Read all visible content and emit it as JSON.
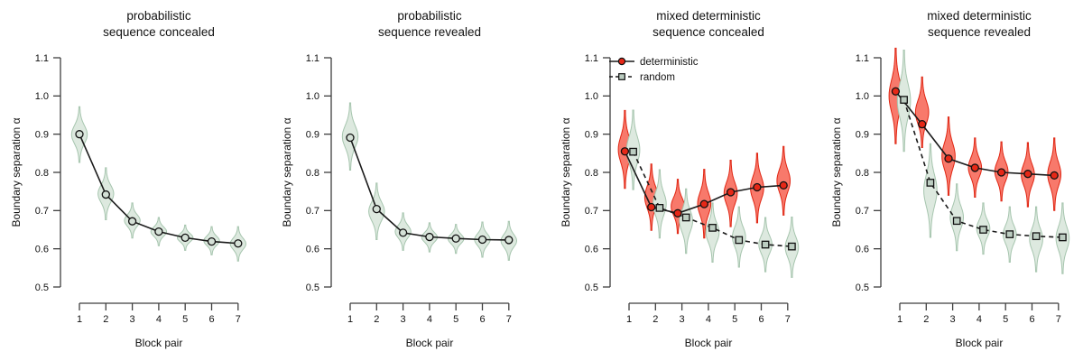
{
  "page": {
    "background": "#ffffff"
  },
  "colors": {
    "axis": "#3f3f3f",
    "text": "#111111",
    "data_line": "#1a1a1a",
    "marker_stroke": "#111111"
  },
  "chart_data": [
    {
      "type": "violin+line",
      "title1": "probabilistic",
      "title2": "sequence concealed",
      "xlabel": "Block pair",
      "ylabel": "Boundary separation α",
      "x": [
        1,
        2,
        3,
        4,
        5,
        6,
        7
      ],
      "ylim": [
        0.5,
        1.1
      ],
      "yticks": [
        0.5,
        0.6,
        0.7,
        0.8,
        0.9,
        1.0,
        1.1
      ],
      "grid": "off",
      "legend": null,
      "series": [
        {
          "name": "probabilistic",
          "line": "solid",
          "marker": "circle",
          "violin_fill": "#dde9df",
          "violin_stroke": "#a6c5ae",
          "marker_fill": "#d4e0d6",
          "means": [
            0.9,
            0.742,
            0.672,
            0.645,
            0.629,
            0.619,
            0.614
          ],
          "violins": [
            [
              0.826,
              0.972
            ],
            [
              0.676,
              0.812
            ],
            [
              0.628,
              0.72
            ],
            [
              0.608,
              0.682
            ],
            [
              0.596,
              0.662
            ],
            [
              0.584,
              0.658
            ],
            [
              0.568,
              0.658
            ]
          ]
        }
      ]
    },
    {
      "type": "violin+line",
      "title1": "probabilistic",
      "title2": "sequence revealed",
      "xlabel": "Block pair",
      "ylabel": "Boundary separation α",
      "x": [
        1,
        2,
        3,
        4,
        5,
        6,
        7
      ],
      "ylim": [
        0.5,
        1.1
      ],
      "yticks": [
        0.5,
        0.6,
        0.7,
        0.8,
        0.9,
        1.0,
        1.1
      ],
      "grid": "off",
      "legend": null,
      "series": [
        {
          "name": "probabilistic",
          "line": "solid",
          "marker": "circle",
          "violin_fill": "#dde9df",
          "violin_stroke": "#a6c5ae",
          "marker_fill": "#d4e0d6",
          "means": [
            0.891,
            0.704,
            0.642,
            0.631,
            0.627,
            0.624,
            0.623
          ],
          "violins": [
            [
              0.806,
              0.982
            ],
            [
              0.624,
              0.772
            ],
            [
              0.596,
              0.694
            ],
            [
              0.592,
              0.668
            ],
            [
              0.588,
              0.664
            ],
            [
              0.578,
              0.67
            ],
            [
              0.57,
              0.672
            ]
          ]
        }
      ]
    },
    {
      "type": "violin+line",
      "title1": "mixed deterministic",
      "title2": "sequence concealed",
      "xlabel": "Block pair",
      "ylabel": "Boundary separation α",
      "x": [
        1,
        2,
        3,
        4,
        5,
        6,
        7
      ],
      "ylim": [
        0.5,
        1.1
      ],
      "yticks": [
        0.5,
        0.6,
        0.7,
        0.8,
        0.9,
        1.0,
        1.1
      ],
      "grid": "off",
      "legend": {
        "position": "top-left",
        "items": [
          {
            "label": "deterministic",
            "line": "solid",
            "marker": "circle",
            "marker_fill": "#e62817"
          },
          {
            "label": "random",
            "line": "dashed",
            "marker": "square",
            "marker_fill": "#bccdc1"
          }
        ]
      },
      "series": [
        {
          "name": "deterministic",
          "line": "solid",
          "marker": "circle",
          "violin_fill": "#f8796b",
          "violin_stroke": "#e02613",
          "marker_fill": "#e62817",
          "means": [
            0.855,
            0.709,
            0.693,
            0.717,
            0.748,
            0.761,
            0.766
          ],
          "violins": [
            [
              0.758,
              0.962
            ],
            [
              0.648,
              0.822
            ],
            [
              0.64,
              0.782
            ],
            [
              0.628,
              0.808
            ],
            [
              0.658,
              0.832
            ],
            [
              0.668,
              0.85
            ],
            [
              0.688,
              0.868
            ]
          ]
        },
        {
          "name": "random",
          "line": "dashed",
          "marker": "square",
          "violin_fill": "#dde9df",
          "violin_stroke": "#a6c5ae",
          "marker_fill": "#bccdc1",
          "means": [
            0.854,
            0.707,
            0.682,
            0.655,
            0.623,
            0.611,
            0.606
          ],
          "violins": [
            [
              0.755,
              0.963
            ],
            [
              0.628,
              0.807
            ],
            [
              0.588,
              0.757
            ],
            [
              0.565,
              0.72
            ],
            [
              0.552,
              0.71
            ],
            [
              0.54,
              0.682
            ],
            [
              0.525,
              0.683
            ]
          ]
        }
      ]
    },
    {
      "type": "violin+line",
      "title1": "mixed deterministic",
      "title2": "sequence revealed",
      "xlabel": "Block pair",
      "ylabel": "Boundary separation α",
      "x": [
        1,
        2,
        3,
        4,
        5,
        6,
        7
      ],
      "ylim": [
        0.5,
        1.1
      ],
      "yticks": [
        0.5,
        0.6,
        0.7,
        0.8,
        0.9,
        1.0,
        1.1
      ],
      "grid": "off",
      "legend": null,
      "series": [
        {
          "name": "deterministic",
          "line": "solid",
          "marker": "circle",
          "violin_fill": "#f8796b",
          "violin_stroke": "#e02613",
          "marker_fill": "#e62817",
          "means": [
            1.012,
            0.926,
            0.836,
            0.812,
            0.8,
            0.796,
            0.792
          ],
          "violins": [
            [
              0.875,
              1.125
            ],
            [
              0.865,
              1.05
            ],
            [
              0.74,
              0.945
            ],
            [
              0.735,
              0.89
            ],
            [
              0.725,
              0.88
            ],
            [
              0.71,
              0.878
            ],
            [
              0.7,
              0.89
            ]
          ]
        },
        {
          "name": "random",
          "line": "dashed",
          "marker": "square",
          "violin_fill": "#dde9df",
          "violin_stroke": "#a6c5ae",
          "marker_fill": "#bccdc1",
          "means": [
            0.99,
            0.773,
            0.673,
            0.65,
            0.638,
            0.633,
            0.63
          ],
          "violins": [
            [
              0.855,
              1.12
            ],
            [
              0.63,
              0.875
            ],
            [
              0.595,
              0.77
            ],
            [
              0.586,
              0.72
            ],
            [
              0.565,
              0.71
            ],
            [
              0.54,
              0.71
            ],
            [
              0.535,
              0.72
            ]
          ]
        }
      ]
    }
  ]
}
